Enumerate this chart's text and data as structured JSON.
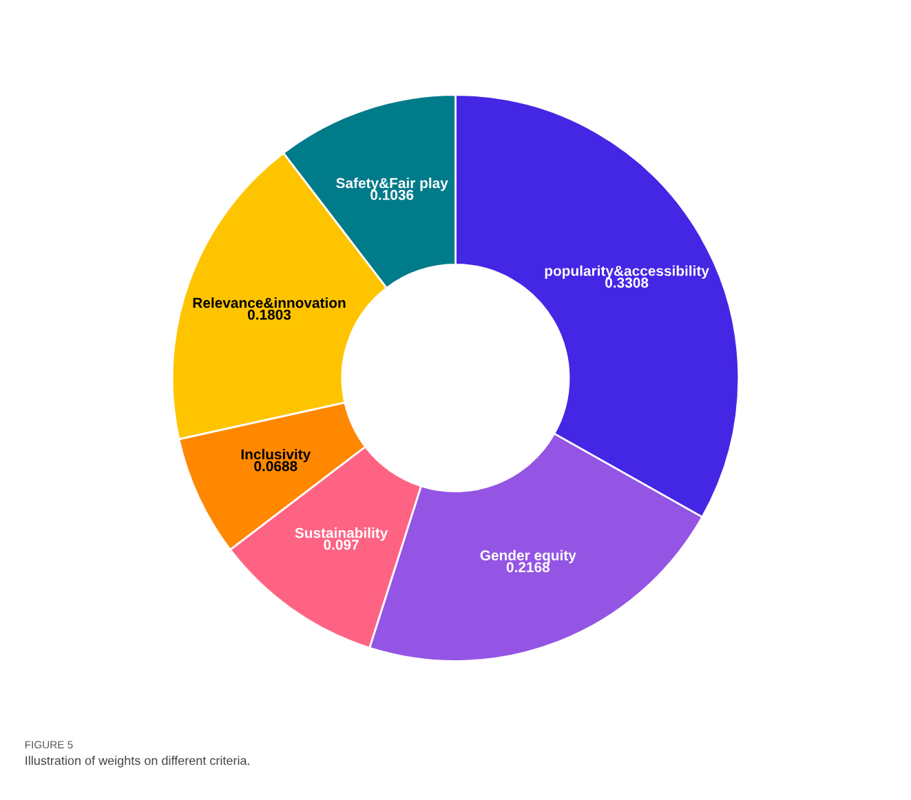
{
  "chart_data": {
    "type": "donut",
    "categories": [
      "popularity&accessibility",
      "Gender equity",
      "Sustainability",
      "Inclusivity",
      "Relevance&innovation",
      "Safety&Fair play"
    ],
    "values": [
      0.3308,
      0.2168,
      0.097,
      0.0688,
      0.1803,
      0.1036
    ],
    "colors": [
      "#4427e4",
      "#9455e4",
      "#ff6384",
      "#ff8800",
      "#ffc400",
      "#007b8a"
    ],
    "data_labels": true,
    "legend": false,
    "annotations": [
      "FIGURE 5",
      "Illustration of weights on different criteria."
    ]
  }
}
